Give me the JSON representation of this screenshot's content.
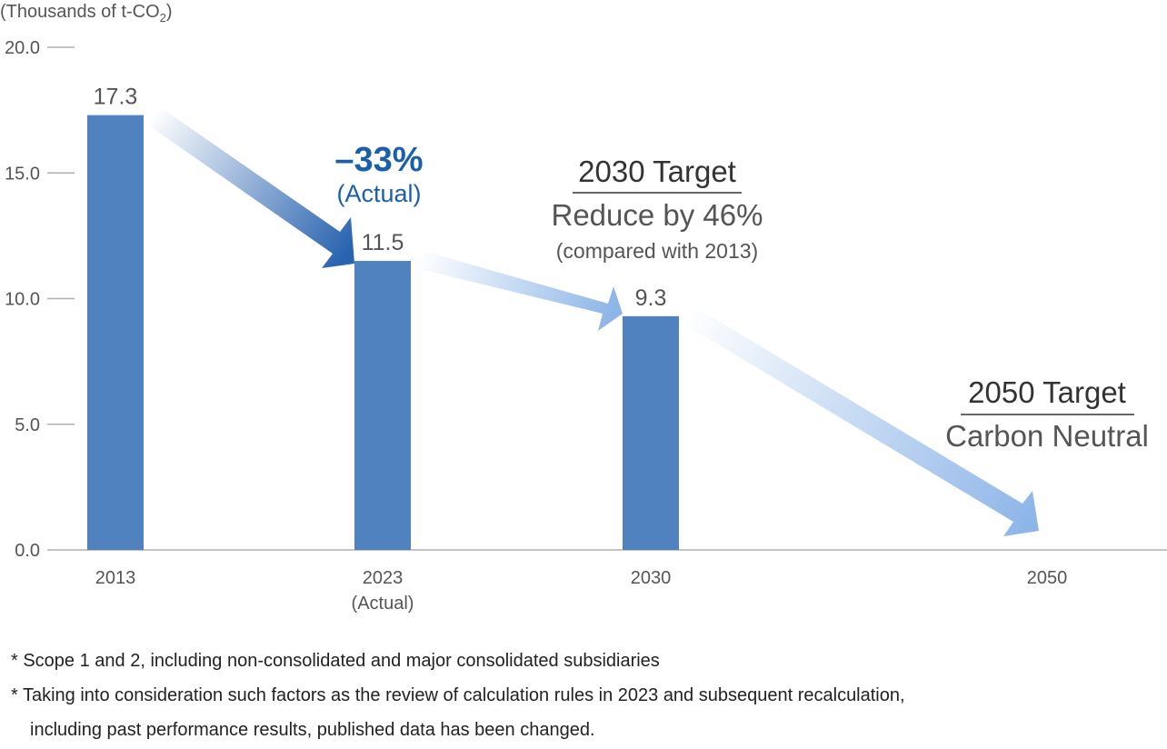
{
  "chart_data": {
    "type": "bar",
    "categories": [
      "2013",
      "2023",
      "2030",
      "2050"
    ],
    "category_sublabels": [
      "",
      "(Actual)",
      "",
      ""
    ],
    "values": [
      17.3,
      11.5,
      9.3,
      null
    ],
    "data_labels": [
      "17.3",
      "11.5",
      "9.3",
      ""
    ],
    "unit_label_prefix": "(Thousands of t-CO",
    "unit_label_sub": "2",
    "unit_label_suffix": ")",
    "ylim": [
      0,
      20
    ],
    "yticks": [
      "0.0",
      "5.0",
      "10.0",
      "15.0",
      "20.0"
    ],
    "grid": false,
    "annotations": {
      "actual_change": "–33%",
      "actual_change_sub": "(Actual)",
      "target_2030_title": "2030 Target",
      "target_2030_line1": "Reduce by 46%",
      "target_2030_line2": "(compared with 2013)",
      "target_2050_title": "2050 Target",
      "target_2050_line1": "Carbon Neutral"
    }
  },
  "colors": {
    "bar": "#5182c0",
    "accent": "#1b5fab",
    "arrow_1": "#2a64b0",
    "arrow_2": "#8db5e8",
    "arrow_3": "#8db5e8",
    "axis": "#b0b0b0"
  },
  "notes": [
    "* Scope 1 and 2, including non-consolidated and major consolidated subsidiaries",
    "* Taking into consideration such factors as the review of calculation rules in 2023 and subsequent recalculation,",
    "including past performance results, published data has been changed."
  ]
}
